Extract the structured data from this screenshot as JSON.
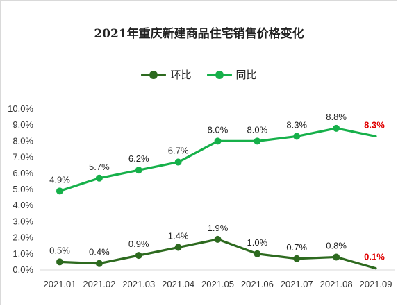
{
  "chart_data": {
    "type": "line",
    "title": "2021年重庆新建商品住宅销售价格变化",
    "categories": [
      "2021.01",
      "2021.02",
      "2021.03",
      "2021.04",
      "2021.05",
      "2021.06",
      "2021.07",
      "2021.08",
      "2021.09"
    ],
    "series": [
      {
        "name": "环比",
        "color": "#2d6a1f",
        "values": [
          0.5,
          0.4,
          0.9,
          1.4,
          1.9,
          1.0,
          0.7,
          0.8,
          0.1
        ],
        "labels": [
          "0.5%",
          "0.4%",
          "0.9%",
          "1.4%",
          "1.9%",
          "1.0%",
          "0.7%",
          "0.8%",
          "0.1%"
        ]
      },
      {
        "name": "同比",
        "color": "#16b04a",
        "values": [
          4.9,
          5.7,
          6.2,
          6.7,
          8.0,
          8.0,
          8.3,
          8.8,
          8.3
        ],
        "labels": [
          "4.9%",
          "5.7%",
          "6.2%",
          "6.7%",
          "8.0%",
          "8.0%",
          "8.3%",
          "8.8%",
          "8.3%"
        ]
      }
    ],
    "highlight_color": "#e00000",
    "highlight_last_label": true,
    "ylim": [
      0,
      10
    ],
    "yticks": [
      "0.0%",
      "1.0%",
      "2.0%",
      "3.0%",
      "4.0%",
      "5.0%",
      "6.0%",
      "7.0%",
      "8.0%",
      "9.0%",
      "10.0%"
    ],
    "grid": false,
    "legend": "top-center"
  }
}
